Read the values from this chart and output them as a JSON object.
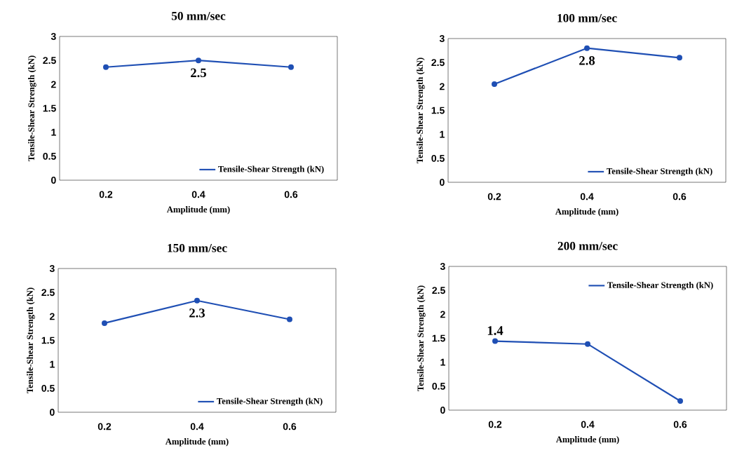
{
  "chart_data": [
    {
      "type": "line",
      "title": "50 mm/sec",
      "xlabel": "Amplitude (mm)",
      "ylabel": "Tensile-Shear Strength (kN)",
      "categories": [
        "0.2",
        "0.4",
        "0.6"
      ],
      "series": [
        {
          "name": "Tensile-Shear Strength (kN)",
          "color": "#1f4fb4",
          "values": [
            2.36,
            2.5,
            2.36
          ],
          "value_labels": [
            null,
            "2.5",
            null
          ]
        }
      ],
      "ylim": [
        0,
        3
      ],
      "yticks": [
        0,
        0.5,
        1,
        1.5,
        2,
        2.5,
        3
      ],
      "legend": "bottom right",
      "marker": "circle",
      "grid": false
    },
    {
      "type": "line",
      "title": "100 mm/sec",
      "xlabel": "Amplitude (mm)",
      "ylabel": "Tensile-Shear Strength (kN)",
      "categories": [
        "0.2",
        "0.4",
        "0.6"
      ],
      "series": [
        {
          "name": "Tensile-Shear Strength (kN)",
          "color": "#1f4fb4",
          "values": [
            2.05,
            2.8,
            2.6
          ],
          "value_labels": [
            null,
            "2.8",
            null
          ]
        }
      ],
      "ylim": [
        0,
        3
      ],
      "yticks": [
        0,
        0.5,
        1,
        1.5,
        2,
        2.5,
        3
      ],
      "legend": "bottom right",
      "marker": "circle",
      "grid": false
    },
    {
      "type": "line",
      "title": "150 mm/sec",
      "xlabel": "Amplitude (mm)",
      "ylabel": "Tensile-Shear Strength (kN)",
      "categories": [
        "0.2",
        "0.4",
        "0.6"
      ],
      "series": [
        {
          "name": "Tensile-Shear Strength (kN)",
          "color": "#1f4fb4",
          "values": [
            1.86,
            2.33,
            1.94
          ],
          "value_labels": [
            null,
            "2.3",
            null
          ]
        }
      ],
      "ylim": [
        0,
        3
      ],
      "yticks": [
        0,
        0.5,
        1,
        1.5,
        2,
        2.5,
        3
      ],
      "legend": "bottom right",
      "marker": "circle",
      "grid": false
    },
    {
      "type": "line",
      "title": "200 mm/sec",
      "xlabel": "Amplitude (mm)",
      "ylabel": "Tensile-Shear Strength (kN)",
      "categories": [
        "0.2",
        "0.4",
        "0.6"
      ],
      "series": [
        {
          "name": "Tensile-Shear Strength (kN)",
          "color": "#1f4fb4",
          "values": [
            1.44,
            1.38,
            0.19
          ],
          "value_labels": [
            "1.4",
            null,
            null
          ]
        }
      ],
      "ylim": [
        0,
        3
      ],
      "yticks": [
        0,
        0.5,
        1,
        1.5,
        2,
        2.5,
        3
      ],
      "legend": "top right",
      "marker": "circle",
      "grid": false
    }
  ]
}
